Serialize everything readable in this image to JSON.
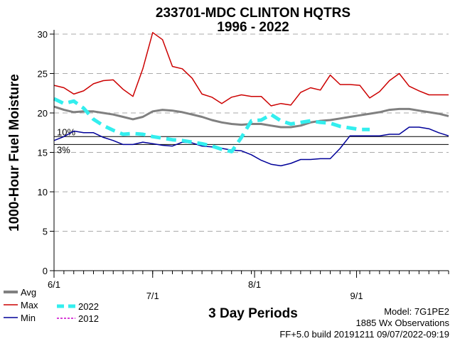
{
  "chart_data": {
    "type": "line",
    "title": "233701-MDC CLINTON HQTRS",
    "subtitle": "1996 - 2022",
    "ylabel": "1000-Hour Fuel Moisture",
    "xlabel": "3 Day Periods",
    "ylim": [
      0,
      30
    ],
    "yticks": [
      0,
      5,
      10,
      15,
      20,
      25,
      30
    ],
    "xlim": [
      0,
      40
    ],
    "xticks": [
      {
        "x": 0,
        "label": "6/1"
      },
      {
        "x": 10,
        "label": "7/1"
      },
      {
        "x": 20.33,
        "label": "8/1"
      },
      {
        "x": 30.67,
        "label": "9/1"
      }
    ],
    "grid": "horizontal dashed",
    "reference_lines": [
      {
        "label": "10%",
        "value": 17
      },
      {
        "label": "3%",
        "value": 16
      }
    ],
    "series": [
      {
        "name": "Avg",
        "color": "#808080",
        "x": [
          0,
          1,
          2,
          3,
          4,
          5,
          6,
          7,
          8,
          9,
          10,
          11,
          12,
          13,
          14,
          15,
          16,
          17,
          18,
          19,
          20,
          21,
          22,
          23,
          24,
          25,
          26,
          27,
          28,
          29,
          30,
          31,
          32,
          33,
          34,
          35,
          36,
          37,
          38,
          39,
          40
        ],
        "values": [
          20.8,
          20.4,
          20.1,
          20.2,
          20.2,
          20.0,
          19.8,
          19.5,
          19.2,
          19.5,
          20.2,
          20.4,
          20.3,
          20.1,
          19.8,
          19.5,
          19.1,
          18.8,
          18.6,
          18.5,
          18.6,
          18.6,
          18.4,
          18.2,
          18.2,
          18.4,
          18.8,
          19.0,
          19.1,
          19.3,
          19.5,
          19.7,
          19.9,
          20.1,
          20.4,
          20.5,
          20.5,
          20.3,
          20.1,
          19.9,
          19.6
        ]
      },
      {
        "name": "Max",
        "color": "#cc0000",
        "x": [
          0,
          1,
          2,
          3,
          4,
          5,
          6,
          7,
          8,
          9,
          10,
          11,
          12,
          13,
          14,
          15,
          16,
          17,
          18,
          19,
          20,
          21,
          22,
          23,
          24,
          25,
          26,
          27,
          28,
          29,
          30,
          31,
          32,
          33,
          34,
          35,
          36,
          37,
          38,
          39,
          40
        ],
        "values": [
          23.5,
          23.2,
          22.4,
          22.8,
          23.7,
          24.1,
          24.2,
          23.0,
          22.1,
          25.6,
          30.2,
          29.3,
          25.9,
          25.6,
          24.4,
          22.4,
          22.0,
          21.2,
          22.0,
          22.3,
          22.1,
          22.1,
          20.9,
          21.2,
          21.0,
          22.6,
          23.2,
          22.9,
          24.8,
          23.6,
          23.6,
          23.5,
          21.9,
          22.7,
          24.1,
          25.0,
          23.4,
          22.8,
          22.3,
          22.3,
          22.3
        ]
      },
      {
        "name": "Min",
        "color": "#000099",
        "x": [
          0,
          1,
          2,
          3,
          4,
          5,
          6,
          7,
          8,
          9,
          10,
          11,
          12,
          13,
          14,
          15,
          16,
          17,
          18,
          19,
          20,
          21,
          22,
          23,
          24,
          25,
          26,
          27,
          28,
          29,
          30,
          31,
          32,
          33,
          34,
          35,
          36,
          37,
          38,
          39,
          40
        ],
        "values": [
          16.5,
          17.0,
          17.7,
          17.5,
          17.5,
          16.9,
          16.5,
          16.0,
          16.0,
          16.3,
          16.1,
          15.9,
          15.8,
          16.3,
          16.2,
          15.8,
          15.7,
          15.5,
          15.3,
          15.2,
          14.7,
          14.0,
          13.5,
          13.3,
          13.6,
          14.1,
          14.1,
          14.2,
          14.2,
          15.5,
          17.1,
          17.1,
          17.1,
          17.1,
          17.3,
          17.3,
          18.2,
          18.2,
          18.0,
          17.5,
          17.1
        ]
      },
      {
        "name": "2022",
        "color": "#33eeee",
        "x": [
          0,
          1,
          2,
          3,
          4,
          5,
          6,
          7,
          8,
          9,
          10,
          11,
          12,
          13,
          14,
          15,
          16,
          17,
          18,
          19,
          20,
          21,
          22,
          23,
          24,
          25,
          26,
          27,
          28,
          29,
          30,
          31,
          32
        ],
        "values": [
          21.8,
          21.2,
          21.5,
          20.6,
          19.2,
          18.4,
          17.8,
          17.3,
          17.4,
          17.3,
          17.0,
          16.8,
          16.6,
          16.5,
          16.3,
          16.1,
          15.8,
          15.4,
          15.1,
          16.9,
          19.0,
          19.1,
          19.8,
          19.0,
          18.6,
          18.8,
          19.0,
          18.8,
          18.7,
          18.3,
          18.1,
          17.9,
          17.9
        ]
      },
      {
        "name": "2012",
        "color": "#cc00cc",
        "x": [],
        "values": []
      }
    ]
  },
  "legend": {
    "avg": "Avg",
    "max": "Max",
    "min": "Min",
    "y2022": "2022",
    "y2012": "2012"
  },
  "footer": {
    "model": "Model: 7G1PE2",
    "observations": "1885 Wx Observations",
    "build": "FF+5.0 build 20191211 09/07/2022-09:19"
  },
  "colors": {
    "avg": "#808080",
    "max": "#cc0000",
    "min": "#000099",
    "y2022": "#33eeee",
    "y2012": "#cc00cc"
  }
}
